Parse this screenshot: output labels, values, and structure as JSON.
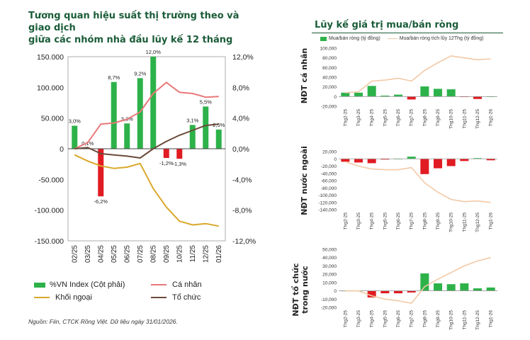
{
  "left": {
    "title_line1": "Tương quan hiệu suất thị trường theo và giao dịch",
    "title_line2": "giữa các nhóm nhà đầu lũy kế 12 tháng",
    "legend": {
      "bar": "%VN Index (Cột phải)",
      "canhan": "Cá nhân",
      "khoingoai": "Khối ngoại",
      "tochuc": "Tổ chức"
    },
    "source": "Nguồn: Fiin, CTCK Rồng Việt. Dữ liệu ngày 31/01/2026."
  },
  "right": {
    "title": "Lũy kế giá trị mua/bán ròng",
    "legend": {
      "bar": "Mua/bán ròng (tỷ đồng)",
      "line": "Mua/bán ròng tích lũy 12Thg (tỷ đồng)"
    },
    "panel_labels": [
      "NĐT cá nhân",
      "NĐT nước ngoài",
      "NĐT tổ chức trong nước"
    ]
  },
  "colors": {
    "bar_green": "#2db24a",
    "bar_red": "#e11b22",
    "canhan": "#e8787a",
    "khoingoai": "#d9a82b",
    "tochuc": "#6b4a3a",
    "cum_line": "#f3c9a6",
    "title_green": "#1a5c38"
  },
  "chart_data": [
    {
      "type": "bar+line",
      "id": "main",
      "categories": [
        "02/25",
        "03/25",
        "04/25",
        "05/25",
        "06/25",
        "07/25",
        "08/25",
        "09/25",
        "10/25",
        "11/25",
        "12/25",
        "01/26"
      ],
      "bar_series": {
        "name": "%VN Index (Cột phải)",
        "values": [
          3.0,
          0.1,
          -6.2,
          8.7,
          3.3,
          9.2,
          12.0,
          -1.2,
          -1.3,
          3.1,
          5.5,
          2.5
        ],
        "labels": [
          "3,0%",
          "0,1%",
          "-6,2%",
          "8,7%",
          "3,3%",
          "9,2%",
          "12,0%",
          "-1,2%",
          "-1,3%",
          "3,1%",
          "5,5%",
          "2,5%"
        ]
      },
      "line_series": [
        {
          "name": "Cá nhân",
          "values": [
            0,
            10000,
            40000,
            42000,
            48000,
            60000,
            90000,
            108000,
            92000,
            90000,
            84000,
            85000
          ]
        },
        {
          "name": "Khối ngoại",
          "values": [
            -10000,
            -20000,
            -28000,
            -32000,
            -30000,
            -24000,
            -65000,
            -95000,
            -118000,
            -124000,
            -122000,
            -126000
          ]
        },
        {
          "name": "Tổ chức",
          "values": [
            0,
            2000,
            -8000,
            -10000,
            -12000,
            -15000,
            0,
            12000,
            22000,
            30000,
            38000,
            40000
          ]
        }
      ],
      "y_left": {
        "min": -150000,
        "max": 150000,
        "ticks": [
          "150.000",
          "100.000",
          "50.000",
          "0",
          "-50.000",
          "-100.000",
          "-150.000"
        ]
      },
      "y_right": {
        "min": -12,
        "max": 12,
        "ticks": [
          "12,0%",
          "8,0%",
          "4,0%",
          "0,0%",
          "-4,0%",
          "-8,0%",
          "-12,0%"
        ]
      }
    },
    {
      "type": "bar+line",
      "id": "canhan",
      "categories": [
        "Thg2-25",
        "Thg3-25",
        "Thg4-25",
        "Thg5-25",
        "Thg6-25",
        "Thg7-25",
        "Thg8-25",
        "Thg9-25",
        "Thg10-25",
        "Thg11-25",
        "Thg12-25",
        "Thg1-26"
      ],
      "bars": [
        8000,
        8000,
        22000,
        2000,
        4000,
        -6000,
        21000,
        16000,
        15000,
        -1000,
        -5000,
        0
      ],
      "cum": [
        8000,
        10000,
        32000,
        34000,
        38000,
        32000,
        54000,
        70000,
        84000,
        80000,
        76000,
        78000
      ],
      "ylim": [
        -20000,
        100000
      ],
      "ticks": [
        "100,000",
        "80,000",
        "60,000",
        "40,000",
        "20,000",
        "0",
        "-20,000"
      ]
    },
    {
      "type": "bar+line",
      "id": "nuocngoai",
      "categories": [
        "Thg2-25",
        "Thg3-25",
        "Thg4-25",
        "Thg5-25",
        "Thg6-25",
        "Thg7-25",
        "Thg8-25",
        "Thg9-25",
        "Thg10-25",
        "Thg11-25",
        "Thg12-25",
        "Thg1-26"
      ],
      "bars": [
        -8000,
        -10000,
        -12000,
        -2000,
        0,
        6000,
        -42000,
        -26000,
        -20000,
        -6000,
        2000,
        -4000
      ],
      "cum": [
        -8000,
        -20000,
        -28000,
        -30000,
        -30000,
        -24000,
        -66000,
        -92000,
        -112000,
        -118000,
        -116000,
        -120000
      ],
      "ylim": [
        -140000,
        20000
      ],
      "ticks": [
        "20,000",
        "0",
        "-20,000",
        "-40,000",
        "-60,000",
        "-80,000",
        "-100,000",
        "-120,000",
        "-140,000"
      ]
    },
    {
      "type": "bar+line",
      "id": "tochuc",
      "categories": [
        "Thg2-25",
        "Thg3-25",
        "Thg4-25",
        "Thg5-25",
        "Thg6-25",
        "Thg7-25",
        "Thg8-25",
        "Thg9-25",
        "Thg10-25",
        "Thg11-25",
        "Thg12-25",
        "Thg1-26"
      ],
      "bars": [
        0,
        0,
        -8000,
        -3000,
        -3000,
        -2000,
        21000,
        9000,
        8000,
        9000,
        3000,
        4000
      ],
      "cum": [
        0,
        0,
        -6000,
        -10000,
        -12000,
        -15000,
        5000,
        14000,
        22000,
        30000,
        36000,
        40000
      ],
      "ylim": [
        -20000,
        50000
      ],
      "ticks": [
        "50,000",
        "40,000",
        "30,000",
        "20,000",
        "10,000",
        "0",
        "-10,000",
        "-20,000"
      ]
    }
  ]
}
